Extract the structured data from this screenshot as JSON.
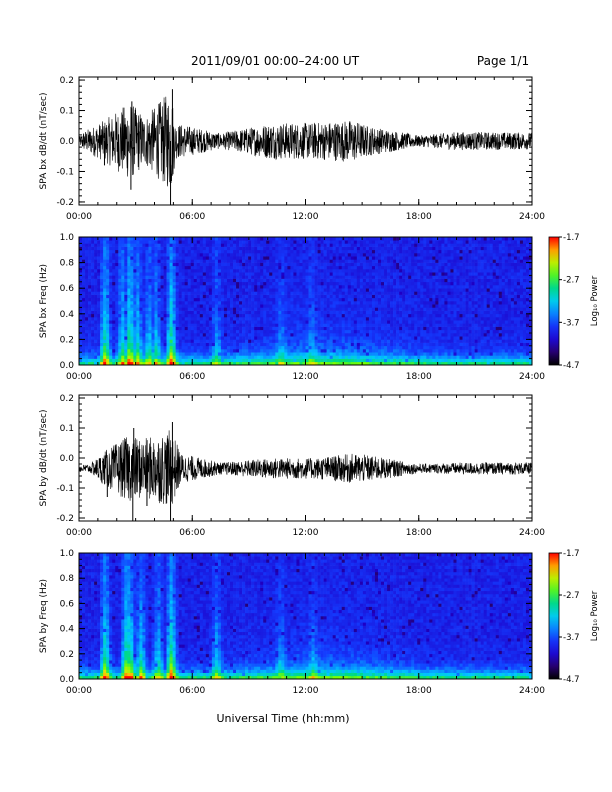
{
  "header": {
    "title": "2011/09/01   00:00–24:00 UT",
    "page": "Page 1/1"
  },
  "footer": {
    "xlabel": "Universal Time (hh:mm)"
  },
  "chart_data": [
    {
      "type": "line",
      "ylabel": "SPA bx dB/dt (nT/sec)",
      "xlabel": "",
      "x_ticks": [
        "00:00",
        "06:00",
        "12:00",
        "18:00",
        "24:00"
      ],
      "y_ticks": [
        "-0.2",
        "-0.1",
        "0.0",
        "0.1",
        "0.2"
      ],
      "ylim": [
        -0.21,
        0.21
      ],
      "xlim_hours": [
        0,
        24
      ],
      "baseline": 0.0,
      "series": [
        {
          "bursts": [
            {
              "hour": 0.0,
              "amplitude": 0.012
            },
            {
              "hour": 0.2,
              "amplitude": 0.03
            },
            {
              "hour": 1.4,
              "amplitude": 0.07
            },
            {
              "hour": 2.7,
              "amplitude": 0.13
            },
            {
              "hour": 3.5,
              "amplitude": 0.08
            },
            {
              "hour": 4.9,
              "amplitude": 0.17
            },
            {
              "hour": 5.1,
              "amplitude": 0.06
            },
            {
              "hour": 7.5,
              "amplitude": 0.025
            },
            {
              "hour": 10.2,
              "amplitude": 0.06
            },
            {
              "hour": 12.2,
              "amplitude": 0.06
            },
            {
              "hour": 14.5,
              "amplitude": 0.07
            },
            {
              "hour": 15.3,
              "amplitude": 0.05
            },
            {
              "hour": 18.0,
              "amplitude": 0.018
            },
            {
              "hour": 20.0,
              "amplitude": 0.03
            },
            {
              "hour": 24.0,
              "amplitude": 0.028
            }
          ],
          "spikes": [
            {
              "hour": 4.85,
              "value": -0.21
            },
            {
              "hour": 4.95,
              "value": 0.17
            },
            {
              "hour": 2.8,
              "value": 0.13
            },
            {
              "hour": 2.75,
              "value": -0.16
            },
            {
              "hour": 1.35,
              "value": -0.08
            }
          ]
        }
      ]
    },
    {
      "type": "heatmap",
      "ylabel": "SPA bx Freq (Hz)",
      "x_ticks": [
        "00:00",
        "06:00",
        "12:00",
        "18:00",
        "24:00"
      ],
      "y_ticks": [
        "0.0",
        "0.2",
        "0.4",
        "0.6",
        "0.8",
        "1.0"
      ],
      "ylim": [
        0,
        1.0
      ],
      "xlim_hours": [
        0,
        24
      ],
      "colorbar": {
        "label": "Log₁₀ Power",
        "ticks": [
          "-1.7",
          "-2.7",
          "-3.7",
          "-4.7"
        ],
        "range": [
          -4.7,
          -1.7
        ]
      },
      "streaks": [
        {
          "hour": 1.4,
          "strength": 0.9
        },
        {
          "hour": 2.3,
          "strength": 0.7
        },
        {
          "hour": 2.7,
          "strength": 1.0
        },
        {
          "hour": 3.1,
          "strength": 0.7
        },
        {
          "hour": 3.7,
          "strength": 0.6
        },
        {
          "hour": 4.1,
          "strength": 0.6
        },
        {
          "hour": 4.9,
          "strength": 1.0
        },
        {
          "hour": 7.3,
          "strength": 0.4
        },
        {
          "hour": 10.7,
          "strength": 0.3
        },
        {
          "hour": 12.3,
          "strength": 0.25
        }
      ]
    },
    {
      "type": "line",
      "ylabel": "SPA by dB/dt (nT/sec)",
      "x_ticks": [
        "00:00",
        "06:00",
        "12:00",
        "18:00",
        "24:00"
      ],
      "y_ticks": [
        "-0.2",
        "-0.1",
        "0.0",
        "0.1",
        "0.2"
      ],
      "ylim": [
        -0.21,
        0.21
      ],
      "xlim_hours": [
        0,
        24
      ],
      "baseline": -0.035,
      "series": [
        {
          "bursts": [
            {
              "hour": 0.0,
              "amplitude": 0.012
            },
            {
              "hour": 0.6,
              "amplitude": 0.015
            },
            {
              "hour": 1.4,
              "amplitude": 0.06
            },
            {
              "hour": 2.6,
              "amplitude": 0.11
            },
            {
              "hour": 3.5,
              "amplitude": 0.1
            },
            {
              "hour": 4.9,
              "amplitude": 0.13
            },
            {
              "hour": 5.4,
              "amplitude": 0.05
            },
            {
              "hour": 7.5,
              "amplitude": 0.02
            },
            {
              "hour": 10.2,
              "amplitude": 0.035
            },
            {
              "hour": 12.5,
              "amplitude": 0.035
            },
            {
              "hour": 14.5,
              "amplitude": 0.05
            },
            {
              "hour": 15.3,
              "amplitude": 0.045
            },
            {
              "hour": 18.0,
              "amplitude": 0.015
            },
            {
              "hour": 20.5,
              "amplitude": 0.02
            },
            {
              "hour": 24.0,
              "amplitude": 0.02
            }
          ],
          "spikes": [
            {
              "hour": 2.85,
              "value": -0.21
            },
            {
              "hour": 4.85,
              "value": -0.21
            },
            {
              "hour": 2.9,
              "value": 0.1
            },
            {
              "hour": 4.95,
              "value": 0.12
            },
            {
              "hour": 1.5,
              "value": -0.13
            },
            {
              "hour": 3.6,
              "value": -0.16
            }
          ]
        }
      ]
    },
    {
      "type": "heatmap",
      "ylabel": "SPA by Freq (Hz)",
      "x_ticks": [
        "00:00",
        "06:00",
        "12:00",
        "18:00",
        "24:00"
      ],
      "y_ticks": [
        "0.0",
        "0.2",
        "0.4",
        "0.6",
        "0.8",
        "1.0"
      ],
      "ylim": [
        0,
        1.0
      ],
      "xlim_hours": [
        0,
        24
      ],
      "colorbar": {
        "label": "Log₁₀ Power",
        "ticks": [
          "-1.7",
          "-2.7",
          "-3.7",
          "-4.7"
        ],
        "range": [
          -4.7,
          -1.7
        ]
      },
      "streaks": [
        {
          "hour": 1.4,
          "strength": 0.9
        },
        {
          "hour": 2.5,
          "strength": 0.9
        },
        {
          "hour": 2.7,
          "strength": 1.0
        },
        {
          "hour": 3.3,
          "strength": 0.7
        },
        {
          "hour": 4.2,
          "strength": 0.6
        },
        {
          "hour": 4.9,
          "strength": 1.0
        },
        {
          "hour": 7.3,
          "strength": 0.5
        },
        {
          "hour": 10.7,
          "strength": 0.3
        },
        {
          "hour": 12.4,
          "strength": 0.25
        }
      ]
    }
  ]
}
